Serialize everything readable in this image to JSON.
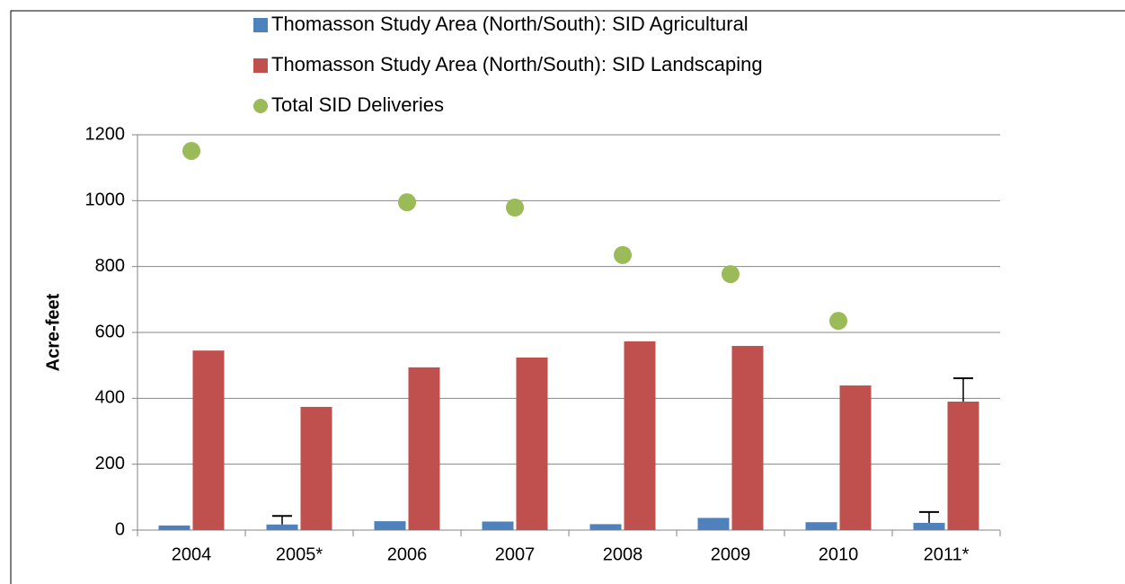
{
  "chart_data": {
    "type": "bar",
    "y_label": "Acre-feet",
    "categories": [
      "2004",
      "2005*",
      "2006",
      "2007",
      "2008",
      "2009",
      "2010",
      "2011*"
    ],
    "series": [
      {
        "name": "Thomasson Study Area (North/South): SID Agricultural",
        "color": "#4f81bd",
        "type": "bar",
        "values": [
          14,
          17,
          27,
          26,
          18,
          37,
          24,
          22
        ],
        "errors": [
          null,
          26,
          null,
          null,
          null,
          null,
          null,
          33
        ]
      },
      {
        "name": "Thomasson Study Area (North/South): SID Landscaping",
        "color": "#c0504d",
        "type": "bar",
        "values": [
          545,
          374,
          494,
          524,
          573,
          559,
          439,
          390
        ],
        "errors": [
          null,
          null,
          null,
          null,
          null,
          null,
          null,
          71
        ]
      },
      {
        "name": "Total SID Deliveries",
        "color": "#9bbb59",
        "type": "scatter",
        "values": [
          1151,
          null,
          995,
          979,
          835,
          777,
          635,
          null
        ]
      }
    ],
    "ylim": [
      0,
      1200
    ],
    "yticks": [
      0,
      200,
      400,
      600,
      800,
      1000,
      1200
    ],
    "grid": true
  }
}
